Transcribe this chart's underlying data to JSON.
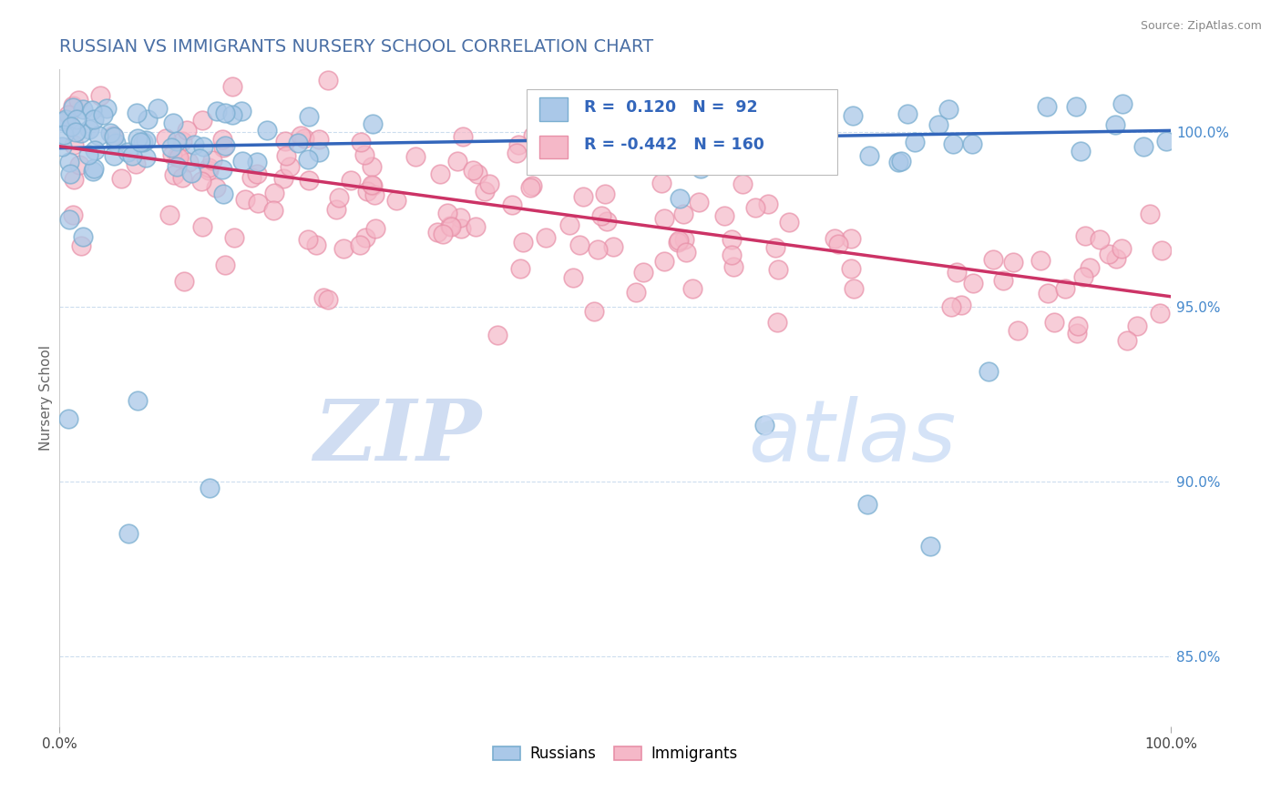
{
  "title": "RUSSIAN VS IMMIGRANTS NURSERY SCHOOL CORRELATION CHART",
  "source": "Source: ZipAtlas.com",
  "ylabel": "Nursery School",
  "xmin": 0.0,
  "xmax": 100.0,
  "ymin": 83.0,
  "ymax": 101.8,
  "ytick_right_labels": [
    "85.0%",
    "90.0%",
    "95.0%",
    "100.0%"
  ],
  "ytick_right_values": [
    85.0,
    90.0,
    95.0,
    100.0
  ],
  "title_color": "#4a6fa5",
  "title_fontsize": 14,
  "legend_R_blue": "0.120",
  "legend_N_blue": "92",
  "legend_R_pink": "-0.442",
  "legend_N_pink": "160",
  "blue_fill_color": "#aac8e8",
  "blue_edge_color": "#7aaed0",
  "pink_fill_color": "#f5b8c8",
  "pink_edge_color": "#e890a8",
  "blue_line_color": "#3366bb",
  "pink_line_color": "#cc3366",
  "legend_text_color": "#3366bb",
  "right_tick_color": "#4488cc",
  "background_color": "#ffffff",
  "blue_trend_start_y": 99.55,
  "blue_trend_end_y": 100.05,
  "pink_trend_start_y": 99.6,
  "pink_trend_end_y": 95.3,
  "watermark_zip_color": "#c8d8f0",
  "watermark_atlas_color": "#c8daf5",
  "grid_color": "#ccddee",
  "scatter_size": 220
}
